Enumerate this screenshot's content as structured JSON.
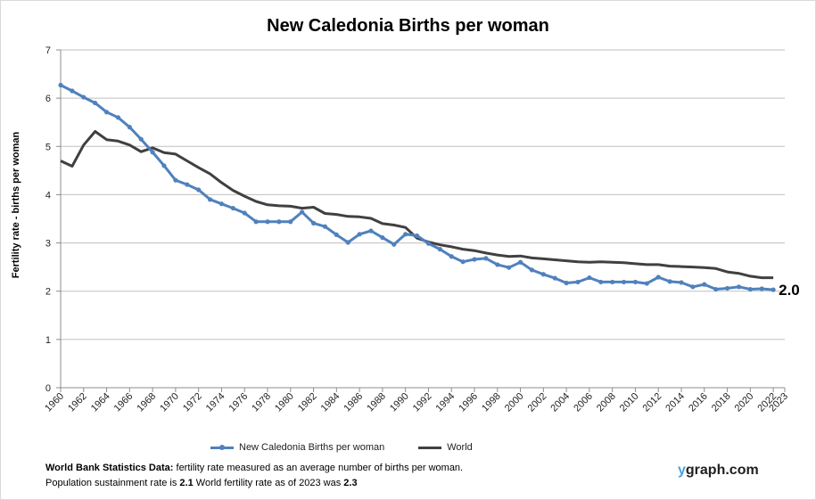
{
  "chart_data": {
    "type": "line",
    "title": "New Caledonia Births per woman",
    "ylabel": "Fertility rate  - births per woman",
    "xlabel": "",
    "xlim": [
      1960,
      2023
    ],
    "ylim": [
      0,
      7
    ],
    "yticks": [
      0,
      1,
      2,
      3,
      4,
      5,
      6,
      7
    ],
    "xticks": [
      1960,
      1962,
      1964,
      1966,
      1968,
      1970,
      1972,
      1974,
      1976,
      1978,
      1980,
      1982,
      1984,
      1986,
      1988,
      1990,
      1992,
      1994,
      1996,
      1998,
      2000,
      2002,
      2004,
      2006,
      2008,
      2010,
      2012,
      2014,
      2016,
      2018,
      2020,
      2022,
      2023
    ],
    "grid": true,
    "legend_position": "bottom",
    "end_label": "2.0",
    "x": [
      1960,
      1961,
      1962,
      1963,
      1964,
      1965,
      1966,
      1967,
      1968,
      1969,
      1970,
      1971,
      1972,
      1973,
      1974,
      1975,
      1976,
      1977,
      1978,
      1979,
      1980,
      1981,
      1982,
      1983,
      1984,
      1985,
      1986,
      1987,
      1988,
      1989,
      1990,
      1991,
      1992,
      1993,
      1994,
      1995,
      1996,
      1997,
      1998,
      1999,
      2000,
      2001,
      2002,
      2003,
      2004,
      2005,
      2006,
      2007,
      2008,
      2009,
      2010,
      2011,
      2012,
      2013,
      2014,
      2015,
      2016,
      2017,
      2018,
      2019,
      2020,
      2021,
      2022
    ],
    "series": [
      {
        "name": "New Caledonia Births per woman",
        "color": "#4f81bd",
        "markers": true,
        "values": [
          6.27,
          6.15,
          6.02,
          5.9,
          5.71,
          5.6,
          5.4,
          5.15,
          4.88,
          4.6,
          4.3,
          4.21,
          4.1,
          3.9,
          3.81,
          3.72,
          3.62,
          3.44,
          3.44,
          3.44,
          3.44,
          3.64,
          3.41,
          3.34,
          3.17,
          3.01,
          3.18,
          3.25,
          3.11,
          2.97,
          3.18,
          3.15,
          2.99,
          2.87,
          2.72,
          2.61,
          2.66,
          2.68,
          2.55,
          2.49,
          2.6,
          2.44,
          2.35,
          2.27,
          2.17,
          2.19,
          2.28,
          2.19,
          2.19,
          2.19,
          2.19,
          2.16,
          2.29,
          2.2,
          2.18,
          2.09,
          2.14,
          2.04,
          2.06,
          2.09,
          2.04,
          2.05,
          2.03
        ]
      },
      {
        "name": "World",
        "color": "#404040",
        "markers": false,
        "values": [
          4.7,
          4.59,
          5.03,
          5.31,
          5.14,
          5.11,
          5.03,
          4.89,
          4.97,
          4.87,
          4.84,
          4.7,
          4.56,
          4.43,
          4.25,
          4.09,
          3.97,
          3.86,
          3.79,
          3.77,
          3.76,
          3.72,
          3.74,
          3.61,
          3.59,
          3.55,
          3.54,
          3.51,
          3.4,
          3.37,
          3.32,
          3.1,
          3.02,
          2.96,
          2.92,
          2.87,
          2.84,
          2.79,
          2.75,
          2.72,
          2.73,
          2.69,
          2.67,
          2.65,
          2.63,
          2.61,
          2.6,
          2.61,
          2.6,
          2.59,
          2.57,
          2.55,
          2.55,
          2.52,
          2.51,
          2.5,
          2.49,
          2.47,
          2.4,
          2.37,
          2.31,
          2.28,
          2.28
        ]
      }
    ]
  },
  "footnote": {
    "line1_bold": "World Bank Statistics Data:",
    "line1_rest": " fertility rate measured as an average number  of births per woman.",
    "line2_a": "Population sustainment rate is ",
    "line2_a_bold": "2.1",
    "line2_b": "    World fertility rate as of 2023 was ",
    "line2_b_bold": "2.3"
  },
  "brand": {
    "y": "y",
    "rest": "graph.com"
  }
}
